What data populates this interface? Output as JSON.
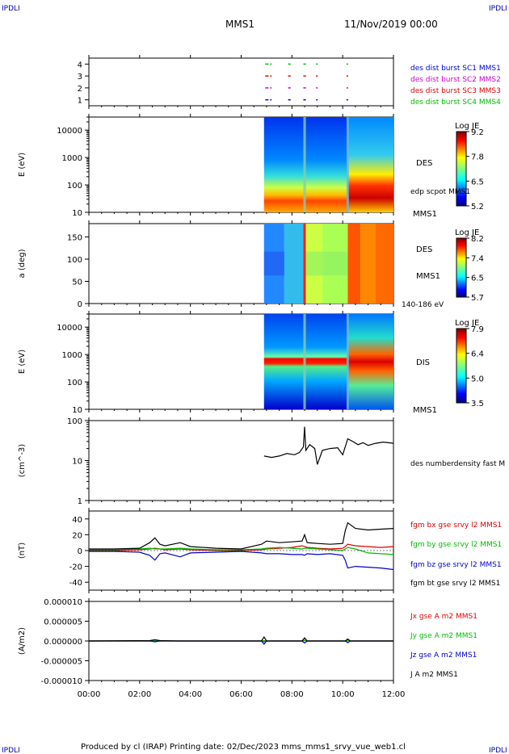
{
  "header": {
    "corner_tl": "IPDLI",
    "corner_tr": "IPDLI",
    "corner_bl": "IPDLI",
    "corner_br": "IPDLI",
    "title": "MMS1",
    "datetime": "11/Nov/2019 00:00"
  },
  "footer": {
    "text": "Produced by cl (IRAP)   Printing date: 02/Dec/2023   mms_mms1_srvy_vue_web1.cl"
  },
  "x_axis": {
    "ticks": [
      "00:00",
      "02:00",
      "04:00",
      "06:00",
      "08:00",
      "10:00",
      "12:00"
    ],
    "range_hours": [
      0,
      12
    ]
  },
  "colors": {
    "blue": "#0000cc",
    "magenta": "#cc00cc",
    "red": "#dd0000",
    "green": "#00bb00",
    "black": "#000000"
  },
  "chart_data": [
    {
      "id": "burst",
      "type": "scatter",
      "ylim": [
        0.5,
        4.5
      ],
      "yticks": [
        "1",
        "2",
        "3",
        "4"
      ],
      "legend": [
        {
          "label": "des dist burst SC1 MMS1",
          "color": "#0000cc"
        },
        {
          "label": "des dist burst SC2 MMS2",
          "color": "#cc00cc"
        },
        {
          "label": "des dist burst SC3 MMS3",
          "color": "#dd0000"
        },
        {
          "label": "des dist burst SC4 MMS4",
          "color": "#00bb00"
        }
      ],
      "burst_intervals_hours": [
        [
          6.95,
          7.2
        ],
        [
          7.85,
          7.95
        ],
        [
          8.45,
          8.55
        ],
        [
          8.95,
          9.0
        ],
        [
          10.15,
          10.2
        ]
      ]
    },
    {
      "id": "des_energy",
      "type": "heatmap",
      "ylabel": "E (eV)",
      "yscale": "log",
      "ylim": [
        10,
        30000
      ],
      "yticks": [
        "10",
        "100",
        "1000",
        "10000"
      ],
      "side_labels": [
        "DES",
        "edp scpot MMS1",
        "MMS1"
      ],
      "colorbar": {
        "title": "Log JE",
        "ticks": [
          "9.2",
          "7.8",
          "6.5",
          "5.2"
        ],
        "range": [
          5.2,
          9.2
        ]
      },
      "data_start_hours": 6.9
    },
    {
      "id": "des_pitch",
      "type": "heatmap",
      "ylabel": "a (deg)",
      "ylim": [
        0,
        180
      ],
      "yticks": [
        "0",
        "50",
        "100",
        "150"
      ],
      "side_labels": [
        "DES",
        "MMS1",
        "140-186 eV"
      ],
      "colorbar": {
        "title": "Log JE",
        "ticks": [
          "8.2",
          "7.4",
          "6.5",
          "5.7"
        ],
        "range": [
          5.7,
          8.2
        ]
      },
      "data_start_hours": 6.9
    },
    {
      "id": "dis_energy",
      "type": "heatmap",
      "ylabel": "E (eV)",
      "yscale": "log",
      "ylim": [
        10,
        30000
      ],
      "yticks": [
        "10",
        "100",
        "1000",
        "10000"
      ],
      "side_labels": [
        "DIS",
        "MMS1"
      ],
      "colorbar": {
        "title": "Log JE",
        "ticks": [
          "7.9",
          "6.4",
          "5.0",
          "3.5"
        ],
        "range": [
          3.5,
          7.9
        ]
      },
      "data_start_hours": 6.9
    },
    {
      "id": "density",
      "type": "line",
      "ylabel": "(cm^-3)",
      "yscale": "log",
      "ylim": [
        1,
        100
      ],
      "yticks": [
        "1",
        "10",
        "100"
      ],
      "series": [
        {
          "name": "des numberdensity fast M",
          "color": "#000000"
        }
      ],
      "x": [
        6.9,
        7.2,
        7.5,
        7.8,
        8.1,
        8.3,
        8.45,
        8.5,
        8.55,
        8.7,
        8.9,
        9.0,
        9.2,
        9.5,
        9.8,
        10.0,
        10.2,
        10.4,
        10.6,
        10.8,
        11.0,
        11.3,
        11.6,
        12.0
      ],
      "y": [
        13,
        12,
        13,
        15,
        14,
        16,
        22,
        70,
        18,
        25,
        20,
        8,
        18,
        20,
        21,
        14,
        35,
        30,
        25,
        28,
        24,
        27,
        29,
        27
      ]
    },
    {
      "id": "fgm",
      "type": "line",
      "ylabel": "(nT)",
      "ylim": [
        -50,
        50
      ],
      "yticks": [
        "-40",
        "-20",
        "0",
        "20",
        "40"
      ],
      "series": [
        {
          "name": "fgm bx gse srvy l2 MMS1",
          "color": "#dd0000"
        },
        {
          "name": "fgm by gse srvy l2 MMS1",
          "color": "#00bb00"
        },
        {
          "name": "fgm bz gse srvy l2 MMS1",
          "color": "#0000cc"
        },
        {
          "name": "fgm bt gse srvy l2 MMS1",
          "color": "#000000"
        }
      ],
      "x": [
        0,
        1,
        2,
        2.4,
        2.6,
        2.8,
        3,
        3.6,
        4,
        5,
        6,
        6.8,
        7,
        7.5,
        8,
        8.4,
        8.5,
        8.6,
        9,
        9.5,
        10,
        10.1,
        10.2,
        10.5,
        11,
        11.5,
        12
      ],
      "series_y": [
        [
          0,
          0,
          1,
          2,
          3,
          2,
          1,
          2,
          1,
          0,
          0,
          1,
          2,
          3,
          4,
          6,
          5,
          4,
          3,
          2,
          3,
          5,
          8,
          6,
          5,
          4,
          5
        ],
        [
          1,
          1,
          2,
          3,
          2,
          2,
          2,
          3,
          2,
          1,
          1,
          2,
          3,
          4,
          3,
          2,
          3,
          3,
          2,
          1,
          0,
          2,
          4,
          2,
          -3,
          -4,
          -5
        ],
        [
          -1,
          -1,
          -2,
          -6,
          -12,
          -4,
          -3,
          -8,
          -3,
          -2,
          -1,
          -3,
          -4,
          -4,
          -5,
          -5,
          -6,
          -4,
          -5,
          -4,
          -6,
          -12,
          -22,
          -20,
          -21,
          -22,
          -24
        ],
        [
          2,
          2,
          3,
          10,
          16,
          8,
          6,
          10,
          5,
          3,
          2,
          8,
          12,
          10,
          11,
          12,
          20,
          10,
          9,
          8,
          9,
          25,
          35,
          28,
          26,
          27,
          28
        ]
      ]
    },
    {
      "id": "current",
      "type": "line",
      "ylabel": "(A/m2)",
      "ylim": [
        -1e-05,
        1e-05
      ],
      "yticks": [
        "-0.000010",
        "-0.000005",
        "0.000000",
        "0.000005",
        "0.000010"
      ],
      "series": [
        {
          "name": "Jx gse A m2 MMS1",
          "color": "#dd0000"
        },
        {
          "name": "Jy gse A m2 MMS1",
          "color": "#00bb00"
        },
        {
          "name": "Jz gse A m2 MMS1",
          "color": "#0000cc"
        },
        {
          "name": "J A m2 MMS1",
          "color": "#000000"
        }
      ],
      "x": [
        0,
        2.4,
        2.6,
        2.8,
        3.5,
        4,
        6.8,
        6.9,
        7.0,
        8.4,
        8.5,
        8.6,
        10.1,
        10.2,
        10.3,
        12
      ],
      "series_y": [
        [
          0,
          0,
          1e-07,
          0,
          0,
          0,
          0,
          -2e-07,
          0,
          0,
          2e-07,
          0,
          0,
          -3e-07,
          0,
          0
        ],
        [
          0,
          0,
          1e-07,
          0,
          0,
          0,
          0,
          1e-07,
          0,
          0,
          1e-07,
          0,
          0,
          2e-07,
          0,
          0
        ],
        [
          0,
          0,
          -2e-07,
          0,
          0,
          0,
          0,
          -8e-07,
          0,
          0,
          -5e-07,
          0,
          0,
          -4e-07,
          0,
          0
        ],
        [
          0,
          1e-07,
          3e-07,
          1e-07,
          0,
          0,
          0,
          1e-06,
          0,
          0,
          8e-07,
          0,
          0,
          5e-07,
          0,
          0
        ]
      ]
    }
  ]
}
